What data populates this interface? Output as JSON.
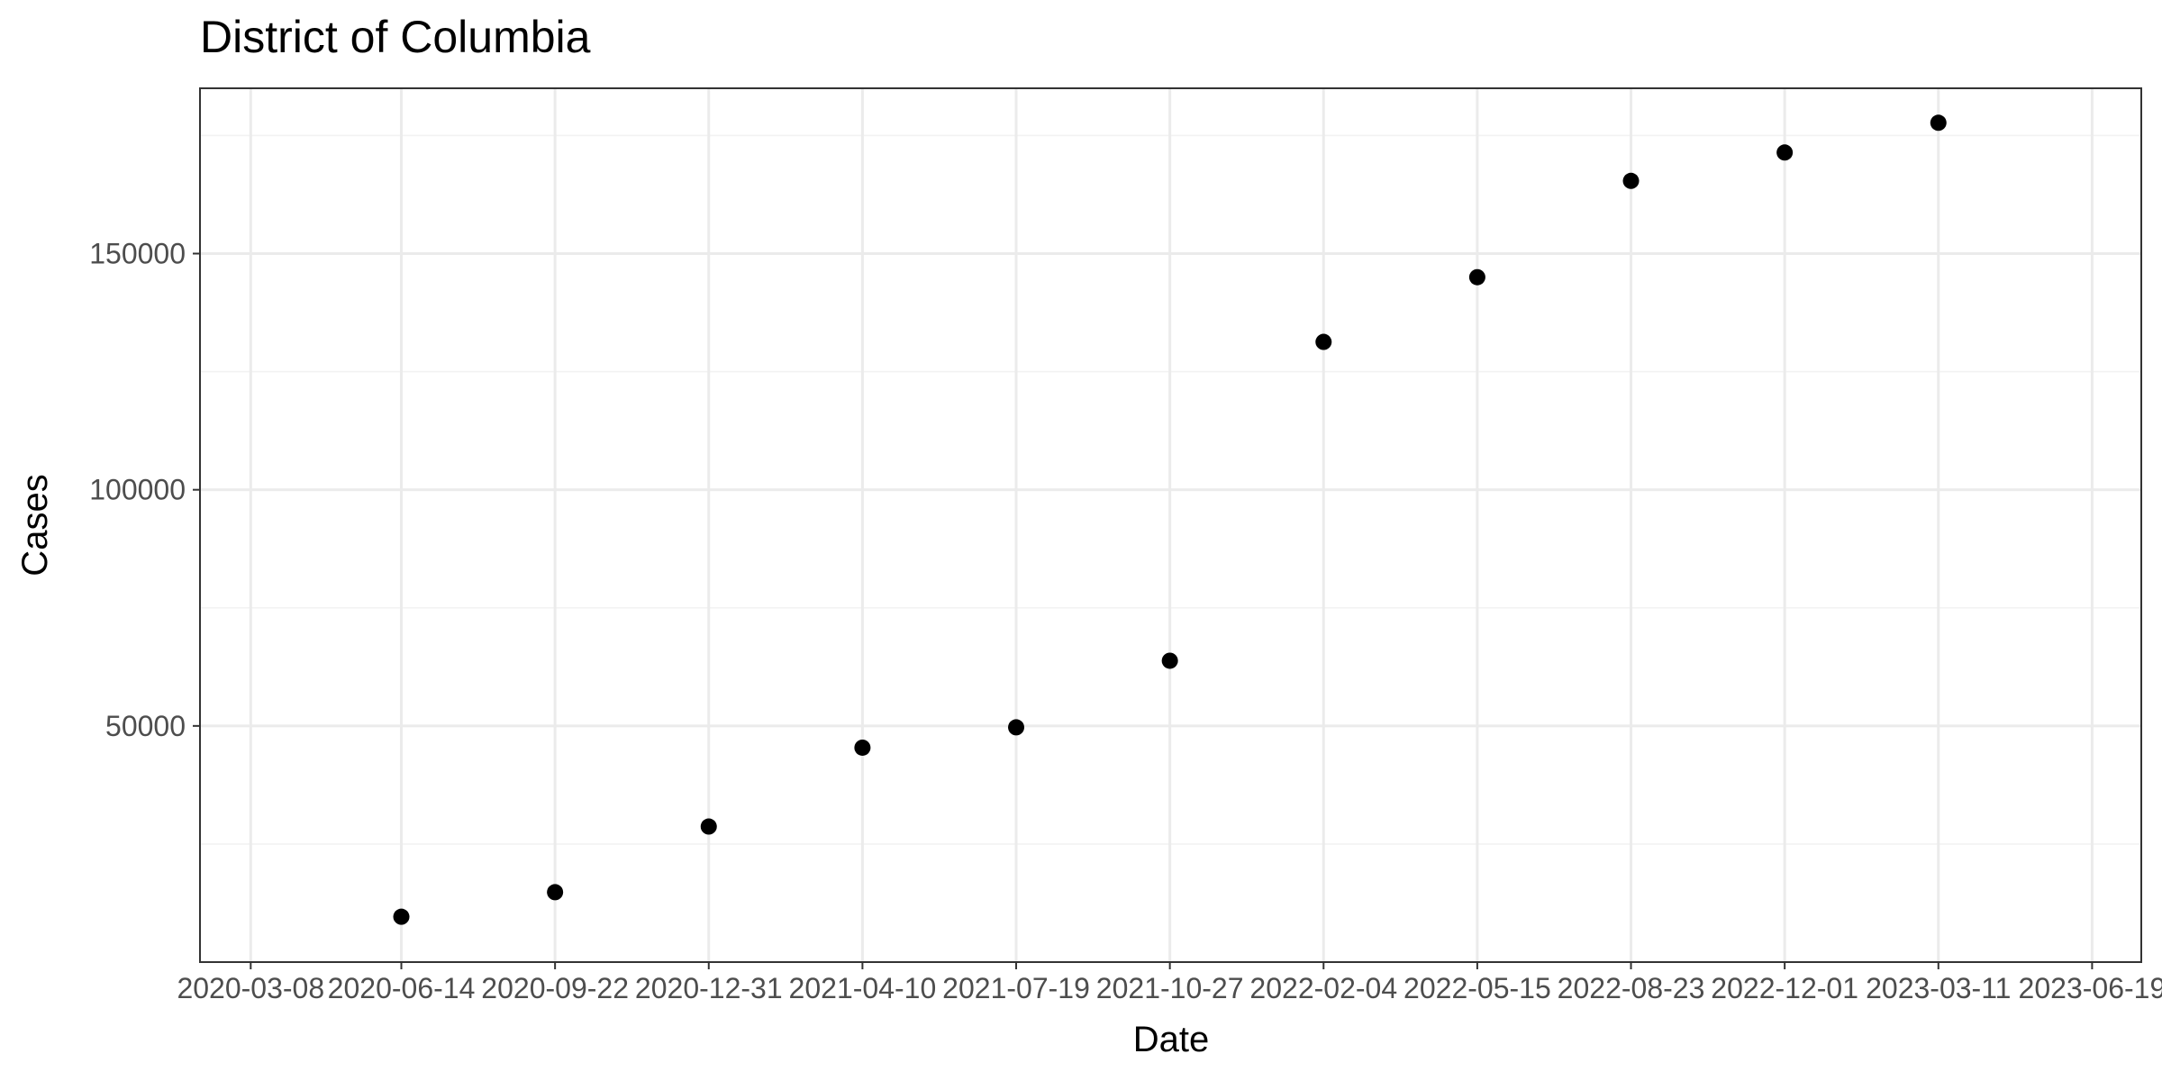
{
  "chart_data": {
    "type": "scatter",
    "title": "District of Columbia",
    "xlabel": "Date",
    "ylabel": "Cases",
    "x_axis_type": "date",
    "x_ticks": [
      "2020-03-08",
      "2020-06-14",
      "2020-09-22",
      "2020-12-31",
      "2021-04-10",
      "2021-07-19",
      "2021-10-27",
      "2022-02-04",
      "2022-05-15",
      "2022-08-23",
      "2022-12-01",
      "2023-03-11",
      "2023-06-19"
    ],
    "x_tick_labels": [
      "2020-03-08",
      "2020-06-14",
      "2020-09-22",
      "2020-12-31",
      "2021-04-10",
      "2021-07-19",
      "2021-10-27",
      "2022-02-04",
      "2022-05-15",
      "2022-08-23",
      "2022-12-01",
      "2023-03-11",
      "2023-06-19"
    ],
    "y_ticks": [
      50000,
      100000,
      150000
    ],
    "y_tick_labels": [
      "50000",
      "100000",
      "150000"
    ],
    "xlim": [
      "2020-02-04",
      "2023-07-21"
    ],
    "ylim": [
      0,
      185000
    ],
    "grid": true,
    "legend": "none",
    "point_color": "#000000",
    "series": [
      {
        "x": [
          "2020-06-14",
          "2020-09-22",
          "2020-12-31",
          "2021-04-10",
          "2021-07-19",
          "2021-10-27",
          "2022-02-04",
          "2022-05-15",
          "2022-08-23",
          "2022-12-01",
          "2023-03-11"
        ],
        "y": [
          9600,
          14800,
          28700,
          45400,
          49700,
          63800,
          131300,
          145000,
          165400,
          171400,
          177700
        ]
      }
    ]
  }
}
